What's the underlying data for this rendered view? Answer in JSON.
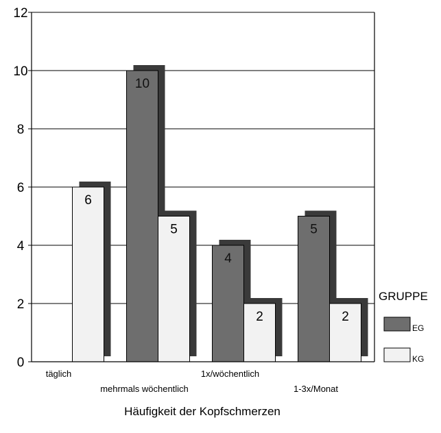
{
  "chart_data": {
    "type": "bar",
    "title": "",
    "xlabel": "Häufigkeit der Kopfschmerzen",
    "ylabel": "",
    "ylim": [
      0,
      12
    ],
    "yticks": [
      0,
      2,
      4,
      6,
      8,
      10,
      12
    ],
    "grid": true,
    "categories": [
      "täglich",
      "mehrmals wöchentlich",
      "1x/wöchentlich",
      "1-3x/Monat"
    ],
    "series": [
      {
        "name": "EG",
        "values": [
          null,
          10,
          4,
          5
        ],
        "color": "#6e6e6e"
      },
      {
        "name": "KG",
        "values": [
          6,
          5,
          2,
          2
        ],
        "color": "#f2f2f2"
      }
    ],
    "shadow_color": "#3a3a3a",
    "legend": {
      "title": "GRUPPE",
      "placement": "right"
    }
  }
}
